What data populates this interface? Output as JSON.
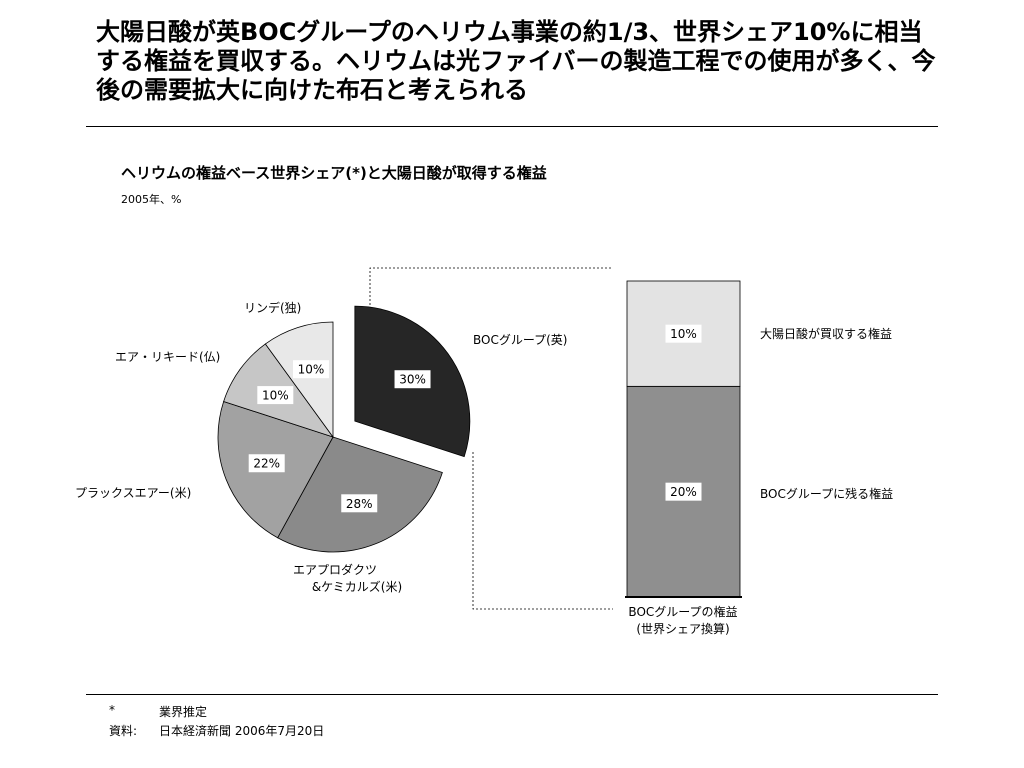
{
  "headline": "大陽日酸が英BOCグループのヘリウム事業の約1/3、世界シェア10%に相当する権益を買収する。ヘリウムは光ファイバーの製造工程での使用が多く、今後の需要拡大に向けた布石と考えられる",
  "chart_title": "ヘリウムの権益ベース世界シェア(*)と大陽日酸が取得する権益",
  "chart_subtitle": "2005年、%",
  "colors": {
    "boc": "#262626",
    "air_products": "#8a8a8a",
    "praxair": "#a2a2a2",
    "air_liquide": "#c6c6c6",
    "linde": "#e8e8e8",
    "bar_taiyo": "#e3e3e3",
    "bar_boc_remaining": "#8f8f8f"
  },
  "chart_data": [
    {
      "type": "pie",
      "categories": [
        "BOCグループ(英)",
        "エアプロダクツ&ケミカルズ(米)",
        "プラックスエアー(米)",
        "エア・リキード(仏)",
        "リンデ(独)"
      ],
      "values": [
        30,
        28,
        22,
        10,
        10
      ],
      "value_labels": [
        "30%",
        "28%",
        "22%",
        "10%",
        "10%"
      ],
      "exploded": "BOCグループ(英)"
    },
    {
      "type": "bar",
      "stacked": true,
      "categories": [
        "BOCグループの権益(世界シェア換算)"
      ],
      "series": [
        {
          "name": "BOCグループに残る権益",
          "values": [
            20
          ],
          "value_label": "20%"
        },
        {
          "name": "大陽日酸が買収する権益",
          "values": [
            10
          ],
          "value_label": "10%"
        }
      ]
    }
  ],
  "slice_labels": {
    "boc": "BOCグループ(英)",
    "air_products_1": "エアプロダクツ",
    "air_products_2": "&ケミカルズ(米)",
    "praxair": "プラックスエアー(米)",
    "air_liquide": "エア・リキード(仏)",
    "linde": "リンデ(独)"
  },
  "bar_labels": {
    "top": "大陽日酸が買収する権益",
    "bottom": "BOCグループに残る権益",
    "axis_1": "BOCグループの権益",
    "axis_2": "(世界シェア換算)"
  },
  "footnotes": [
    {
      "mark": "*",
      "text": "業界推定"
    },
    {
      "mark": "資料:",
      "text": "日本経済新聞 2006年7月20日"
    }
  ]
}
